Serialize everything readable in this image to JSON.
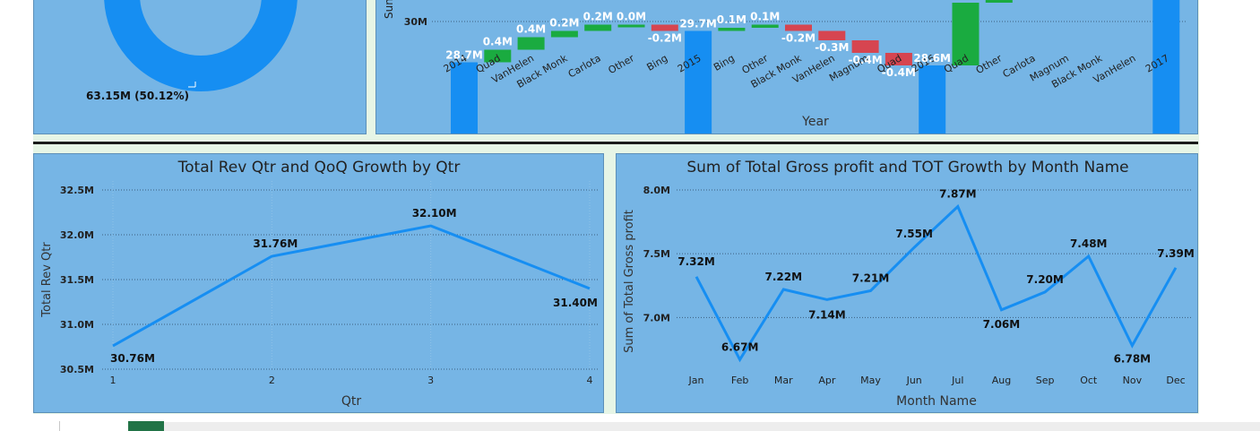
{
  "donut": {
    "label": "63.15M (50.12%)",
    "color": "#168ef2"
  },
  "waterfall_panel": {
    "y_axis_label_visible": "Sun",
    "x_axis_label": "Year"
  },
  "chart_data": [
    {
      "type": "waterfall",
      "title": "",
      "xlabel": "Year",
      "ylabel": "Sun",
      "y_tick_labels": [
        "30M"
      ],
      "categories": [
        "2014",
        "Quad",
        "VanHelen",
        "Black Monk",
        "Carlota",
        "Other",
        "Bing",
        "2015",
        "Bing",
        "Other",
        "Black Monk",
        "VanHelen",
        "Magnum",
        "Quad",
        "2016",
        "Quad",
        "Other",
        "Carlota",
        "Magnum",
        "Black Monk",
        "VanHelen",
        "2017"
      ],
      "values": [
        28.7,
        0.4,
        0.4,
        0.2,
        0.2,
        0.0,
        -0.2,
        29.7,
        0.1,
        0.1,
        -0.2,
        -0.3,
        -0.4,
        -0.4,
        28.6,
        2.0,
        0.1,
        0.1,
        0.1,
        0.1,
        0.1,
        31.0
      ],
      "data_labels": [
        "28.7M",
        "0.4M",
        "0.4M",
        "0.2M",
        "0.2M",
        "0.0M",
        "-0.2M",
        "29.7M",
        "0.1M",
        "0.1M",
        "-0.2M",
        "-0.3M",
        "-0.4M",
        "-0.4M",
        "28.6M",
        "",
        "",
        "",
        "",
        "",
        "",
        ""
      ],
      "kinds": [
        "total",
        "inc",
        "inc",
        "inc",
        "inc",
        "inc",
        "dec",
        "total",
        "inc",
        "inc",
        "dec",
        "dec",
        "dec",
        "dec",
        "total",
        "inc",
        "inc",
        "inc",
        "inc",
        "inc",
        "inc",
        "total"
      ],
      "colors": {
        "total": "#168ef2",
        "increase": "#1aab40",
        "decrease": "#d64550"
      }
    },
    {
      "type": "line",
      "title": "Total Rev Qtr and QoQ Growth by Qtr",
      "xlabel": "Qtr",
      "ylabel": "Total Rev Qtr",
      "categories": [
        "1",
        "2",
        "3",
        "4"
      ],
      "y_ticks": [
        30.5,
        31.0,
        31.5,
        32.0,
        32.5
      ],
      "y_tick_labels": [
        "30.5M",
        "31.0M",
        "31.5M",
        "32.0M",
        "32.5M"
      ],
      "ylim": [
        30.5,
        32.5
      ],
      "series": [
        {
          "values": [
            30.76,
            31.76,
            32.1,
            31.4
          ],
          "labels": [
            "30.76M",
            "31.76M",
            "32.10M",
            "31.40M"
          ]
        }
      ],
      "line_color": "#168ef2",
      "grid": true
    },
    {
      "type": "line",
      "title": "Sum of Total Gross profit and TOT Growth by Month Name",
      "xlabel": "Month Name",
      "ylabel": "Sum of Total Gross profit",
      "categories": [
        "Jan",
        "Feb",
        "Mar",
        "Apr",
        "May",
        "Jun",
        "Jul",
        "Aug",
        "Sep",
        "Oct",
        "Nov",
        "Dec"
      ],
      "y_ticks": [
        7.0,
        7.5,
        8.0
      ],
      "y_tick_labels": [
        "7.0M",
        "7.5M",
        "8.0M"
      ],
      "ylim": [
        6.6,
        8.0
      ],
      "series": [
        {
          "values": [
            7.32,
            6.67,
            7.22,
            7.14,
            7.21,
            7.55,
            7.87,
            7.06,
            7.2,
            7.48,
            6.78,
            7.39
          ],
          "labels": [
            "7.32M",
            "6.67M",
            "7.22M",
            "7.14M",
            "7.21M",
            "7.55M",
            "7.87M",
            "7.06M",
            "7.20M",
            "7.48M",
            "6.78M",
            "7.39M"
          ]
        }
      ],
      "line_color": "#168ef2",
      "grid": true
    }
  ]
}
